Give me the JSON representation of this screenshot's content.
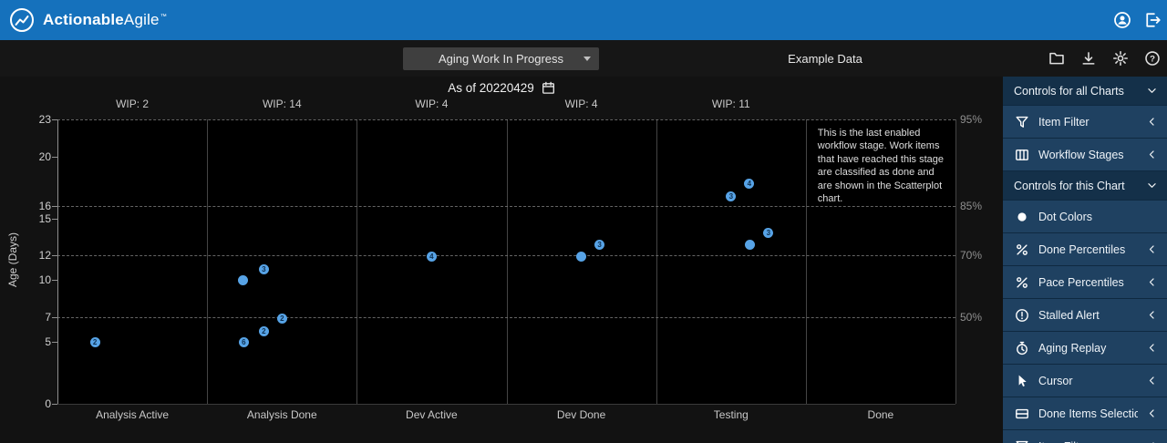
{
  "header": {
    "brand_bold": "Actionable",
    "brand_light": "Agile",
    "tm": "™"
  },
  "toolbar": {
    "chart_selector": "Aging Work In Progress",
    "example_data": "Example Data"
  },
  "date_bar": {
    "as_of": "As of 20220429"
  },
  "sidebar": {
    "items": [
      {
        "label": "Controls for all Charts",
        "type": "header",
        "chevron": "down"
      },
      {
        "label": "Item Filter",
        "icon": "filter",
        "chevron": "left"
      },
      {
        "label": "Workflow Stages",
        "icon": "columns",
        "chevron": "left"
      },
      {
        "label": "Controls for this Chart",
        "type": "header",
        "chevron": "down"
      },
      {
        "label": "Dot Colors",
        "icon": "dot",
        "chevron": null
      },
      {
        "label": "Done Percentiles",
        "icon": "percent",
        "chevron": "left"
      },
      {
        "label": "Pace Percentiles",
        "icon": "percent",
        "chevron": "left"
      },
      {
        "label": "Stalled Alert",
        "icon": "alert",
        "chevron": "left"
      },
      {
        "label": "Aging Replay",
        "icon": "replay",
        "chevron": "left"
      },
      {
        "label": "Cursor",
        "icon": "cursor",
        "chevron": "left"
      },
      {
        "label": "Done Items Selection",
        "icon": "selection",
        "chevron": "left"
      },
      {
        "label": "Item Filter",
        "icon": "filter",
        "chevron": "left",
        "partial": true
      }
    ]
  },
  "chart_data": {
    "type": "scatter",
    "title": "Aging Work In Progress",
    "ylabel": "Age (Days)",
    "ylim": [
      0,
      23
    ],
    "y_ticks": [
      23,
      20,
      16,
      15,
      12,
      10,
      7,
      5,
      0
    ],
    "grid": "dashed-percentile-lines",
    "percentiles": [
      {
        "label": "95%",
        "age": 23
      },
      {
        "label": "85%",
        "age": 16
      },
      {
        "label": "70%",
        "age": 12
      },
      {
        "label": "50%",
        "age": 7
      }
    ],
    "stages": [
      {
        "name": "Analysis Active",
        "wip": "WIP: 2"
      },
      {
        "name": "Analysis Done",
        "wip": "WIP: 14"
      },
      {
        "name": "Dev Active",
        "wip": "WIP: 4"
      },
      {
        "name": "Dev Done",
        "wip": "WIP: 4"
      },
      {
        "name": "Testing",
        "wip": "WIP: 11"
      },
      {
        "name": "Done",
        "wip": null,
        "annotation": "This is the last enabled workflow stage. Work items that have reached this stage are classified as done and are shown in the Scatterplot chart."
      }
    ],
    "points": [
      {
        "stage": "Analysis Active",
        "age": 5,
        "count": 2,
        "dx": -41
      },
      {
        "stage": "Analysis Done",
        "age": 10,
        "count": 1,
        "dx": -43
      },
      {
        "stage": "Analysis Done",
        "age": 10.9,
        "count": 3,
        "dx": -20
      },
      {
        "stage": "Analysis Done",
        "age": 6.9,
        "count": 2,
        "dx": 0
      },
      {
        "stage": "Analysis Done",
        "age": 5.9,
        "count": 2,
        "dx": -20
      },
      {
        "stage": "Analysis Done",
        "age": 5,
        "count": 6,
        "dx": -42
      },
      {
        "stage": "Dev Active",
        "age": 11.9,
        "count": 4,
        "dx": 0
      },
      {
        "stage": "Dev Done",
        "age": 11.9,
        "count": 1,
        "dx": 0
      },
      {
        "stage": "Dev Done",
        "age": 12.9,
        "count": 3,
        "dx": 20
      },
      {
        "stage": "Testing",
        "age": 16.8,
        "count": 3,
        "dx": 0
      },
      {
        "stage": "Testing",
        "age": 17.8,
        "count": 4,
        "dx": 20
      },
      {
        "stage": "Testing",
        "age": 13.8,
        "count": 3,
        "dx": 41
      },
      {
        "stage": "Testing",
        "age": 12.9,
        "count": 1,
        "dx": 21
      }
    ],
    "dot_color": "#57a3e6",
    "accent_blue": "#1571bc"
  }
}
